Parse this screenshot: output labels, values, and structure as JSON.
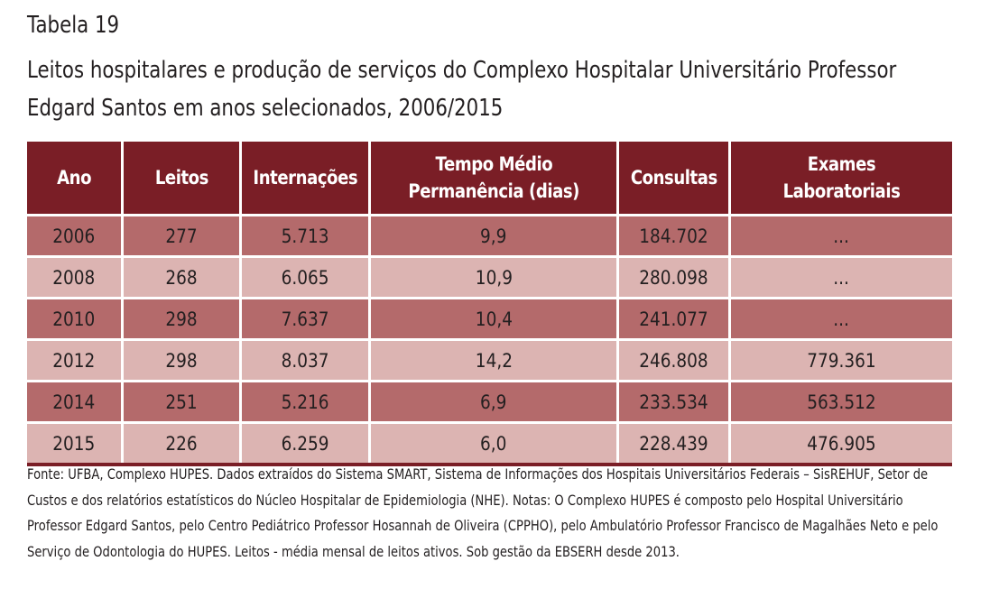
{
  "table_label": "Tabela 19",
  "table_title": "Leitos hospitalares e produção de serviços do Complexo Hospitalar Universitário Professor Edgard Santos em anos selecionados, 2006/2015",
  "columns": {
    "ano": "Ano",
    "leitos": "Leitos",
    "internacoes": "Internações",
    "tempo_line1": "Tempo Médio",
    "tempo_line2": "Permanência (dias)",
    "consultas": "Consultas",
    "exames": "Exames Laboratoriais"
  },
  "rows": [
    [
      "2006",
      "277",
      "5.713",
      "9,9",
      "184.702",
      "..."
    ],
    [
      "2008",
      "268",
      "6.065",
      "10,9",
      "280.098",
      "..."
    ],
    [
      "2010",
      "298",
      "7.637",
      "10,4",
      "241.077",
      "..."
    ],
    [
      "2012",
      "298",
      "8.037",
      "14,2",
      "246.808",
      "779.361"
    ],
    [
      "2014",
      "251",
      "5.216",
      "6,9",
      "233.534",
      "563.512"
    ],
    [
      "2015",
      "226",
      "6.259",
      "6,0",
      "228.439",
      "476.905"
    ]
  ],
  "source_note": "Fonte: UFBA, Complexo HUPES. Dados extraídos do Sistema SMART, Sistema de Informações dos Hospitais Universitários Federais – SisREHUF, Setor de Custos e dos relatórios estatísticos do Núcleo Hospitalar de Epidemiologia (NHE). Notas: O Complexo HUPES é composto pelo Hospital Universitário Professor Edgard Santos, pelo Centro Pediátrico Professor Hosannah de Oliveira (CPPHO), pelo Ambulatório Professor Francisco de Magalhães Neto e pelo Serviço de Odontologia do HUPES. Leitos - média mensal de leitos ativos. Sob gestão da EBSERH desde 2013.",
  "colors": {
    "header_bg": "#7a1e26",
    "row_dark": "#b46a6b",
    "row_light": "#dcb4b2"
  }
}
